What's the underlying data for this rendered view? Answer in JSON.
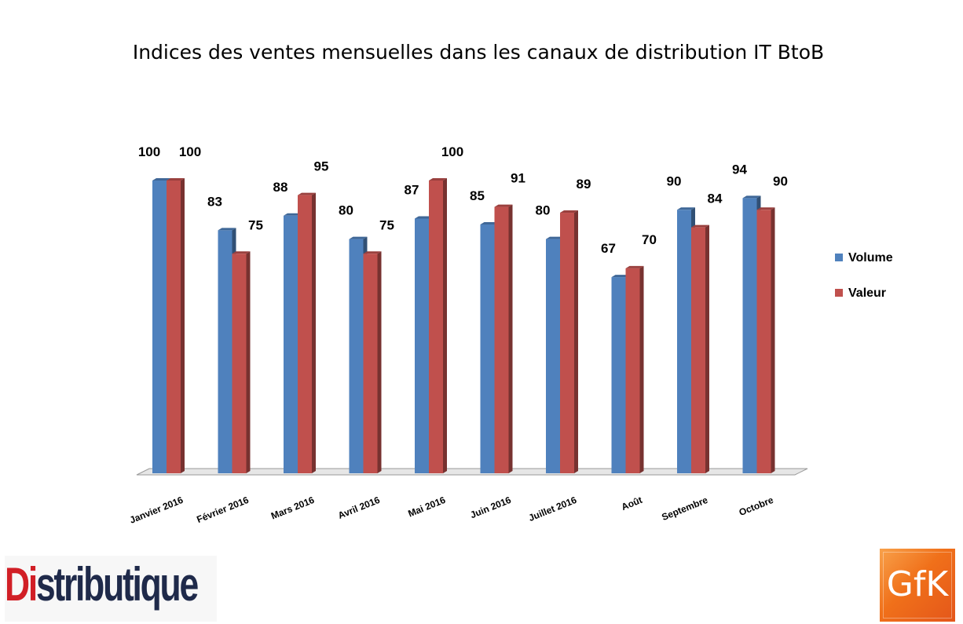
{
  "chart_data": {
    "type": "bar",
    "title": "Indices des ventes mensuelles dans les canaux de distribution IT BtoB",
    "categories": [
      "Janvier 2016",
      "Février 2016",
      "Mars 2016",
      "Avril 2016",
      "Mai 2016",
      "Juin 2016",
      "Juillet 2016",
      "Août",
      "Septembre",
      "Octobre"
    ],
    "series": [
      {
        "name": "Volume",
        "values": [
          100,
          83,
          88,
          80,
          87,
          85,
          80,
          67,
          90,
          94
        ],
        "color": "#4f81bd"
      },
      {
        "name": "Valeur",
        "values": [
          100,
          75,
          95,
          75,
          100,
          91,
          89,
          70,
          84,
          90
        ],
        "color": "#c0504d"
      }
    ],
    "ylim": [
      0,
      100
    ],
    "grid": false,
    "legend": "right",
    "style": "3d-clustered-column"
  },
  "logos": {
    "distributique": {
      "part1": "Di",
      "part2": "stributique"
    },
    "gfk": "GfK"
  }
}
